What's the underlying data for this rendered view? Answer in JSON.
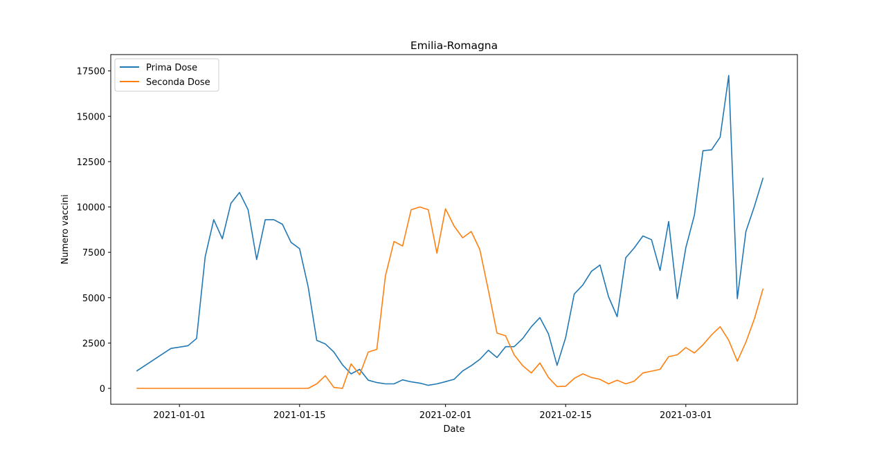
{
  "chart_data": {
    "type": "line",
    "title": "Emilia-Romagna",
    "xlabel": "Date",
    "ylabel": "Numero vaccini",
    "x_start": "2020-12-27",
    "x_step_days": 1,
    "xlim": [
      "2020-12-24",
      "2021-03-14"
    ],
    "ylim": [
      -875,
      18400
    ],
    "xticks": [
      "2021-01-01",
      "2021-01-15",
      "2021-02-01",
      "2021-02-15",
      "2021-03-01"
    ],
    "yticks": [
      0,
      2500,
      5000,
      7500,
      10000,
      12500,
      15000,
      17500
    ],
    "grid": false,
    "legend_position": "top-left",
    "series": [
      {
        "name": "Prima Dose",
        "color": "#1f77b4",
        "values": [
          950,
          null,
          null,
          null,
          2200,
          null,
          2350,
          2750,
          7250,
          9300,
          8250,
          10200,
          10800,
          9850,
          7100,
          9300,
          9300,
          9050,
          8050,
          7700,
          5600,
          2650,
          2450,
          2000,
          1300,
          800,
          1050,
          450,
          320,
          250,
          250,
          470,
          360,
          290,
          170,
          250,
          370,
          500,
          960,
          1250,
          1600,
          2100,
          1700,
          2300,
          2300,
          2750,
          3400,
          3900,
          3000,
          1270,
          2800,
          5200,
          5700,
          6450,
          6800,
          5050,
          3950,
          7200,
          7750,
          8400,
          8200,
          6500,
          9200,
          4950,
          7750,
          9550,
          13100,
          13150,
          13850,
          17250,
          4950,
          8650,
          10050,
          11600
        ]
      },
      {
        "name": "Seconda Dose",
        "color": "#ff7f0e",
        "values": [
          0,
          null,
          null,
          null,
          null,
          null,
          null,
          null,
          null,
          null,
          null,
          null,
          null,
          null,
          null,
          null,
          null,
          null,
          null,
          null,
          0,
          250,
          700,
          50,
          0,
          1350,
          750,
          2000,
          2150,
          6200,
          8100,
          7850,
          9850,
          10000,
          9850,
          7450,
          9900,
          8950,
          8300,
          8650,
          7650,
          5400,
          3050,
          2900,
          1850,
          1250,
          850,
          1400,
          600,
          100,
          120,
          550,
          800,
          600,
          500,
          250,
          450,
          250,
          400,
          850,
          950,
          1050,
          1750,
          1850,
          2250,
          1950,
          2400,
          2950,
          3400,
          2650,
          1500,
          2550,
          3850,
          5500
        ]
      }
    ]
  }
}
